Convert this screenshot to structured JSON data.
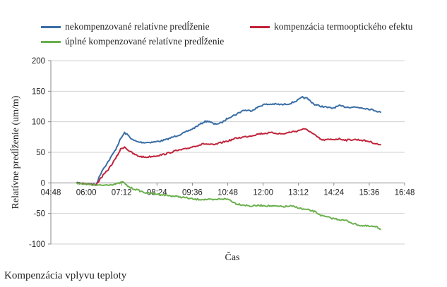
{
  "chart_data": {
    "type": "line",
    "xlabel": "Čas",
    "ylabel": "Relatívne predĺženie (um/m)",
    "ylim": [
      -100,
      200
    ],
    "yticks": [
      -100,
      -50,
      0,
      50,
      100,
      150,
      200
    ],
    "xlim": [
      "04:48",
      "16:48"
    ],
    "xticks": [
      "04:48",
      "06:00",
      "07:12",
      "08:24",
      "09:36",
      "10:48",
      "12:00",
      "13:12",
      "14:24",
      "15:36",
      "16:48"
    ],
    "grid": "horizontal",
    "legend_position": "top",
    "series": [
      {
        "name": "nekompenzované relatívne predĺženie",
        "color": "#3a6ea5",
        "x": [
          "05:40",
          "06:00",
          "06:10",
          "06:20",
          "06:32",
          "06:45",
          "07:00",
          "07:10",
          "07:18",
          "07:25",
          "07:35",
          "07:45",
          "08:00",
          "08:20",
          "08:40",
          "09:00",
          "09:20",
          "09:40",
          "10:00",
          "10:10",
          "10:20",
          "10:35",
          "10:50",
          "11:05",
          "11:20",
          "11:35",
          "11:50",
          "12:00",
          "12:20",
          "12:40",
          "12:55",
          "13:10",
          "13:20",
          "13:30",
          "13:45",
          "14:00",
          "14:20",
          "14:35",
          "14:50",
          "15:05",
          "15:20",
          "15:35",
          "15:50",
          "16:00"
        ],
        "values": [
          0,
          -1,
          -2,
          -3,
          20,
          35,
          55,
          72,
          82,
          78,
          70,
          67,
          66,
          67,
          70,
          76,
          82,
          90,
          100,
          101,
          96,
          98,
          107,
          112,
          119,
          118,
          124,
          128,
          129,
          128,
          130,
          135,
          140,
          138,
          128,
          125,
          122,
          126,
          124,
          124,
          123,
          121,
          118,
          115
        ]
      },
      {
        "name": "kompenzácia termooptického efektu",
        "color": "#c0243b",
        "x": [
          "05:40",
          "06:00",
          "06:10",
          "06:20",
          "06:32",
          "06:45",
          "07:00",
          "07:10",
          "07:18",
          "07:25",
          "07:35",
          "07:45",
          "08:00",
          "08:20",
          "08:40",
          "09:00",
          "09:20",
          "09:40",
          "10:00",
          "10:20",
          "10:35",
          "10:50",
          "11:05",
          "11:20",
          "11:35",
          "11:50",
          "12:00",
          "12:20",
          "12:40",
          "12:55",
          "13:10",
          "13:20",
          "13:30",
          "13:45",
          "14:00",
          "14:20",
          "14:35",
          "14:50",
          "15:05",
          "15:20",
          "15:35",
          "15:50",
          "16:00"
        ],
        "values": [
          0,
          -1,
          -3,
          -3,
          10,
          22,
          40,
          55,
          59,
          54,
          48,
          44,
          42,
          44,
          47,
          52,
          55,
          60,
          64,
          62,
          66,
          69,
          73,
          75,
          77,
          80,
          81,
          82,
          80,
          83,
          85,
          88,
          87,
          78,
          70,
          71,
          72,
          70,
          71,
          70,
          68,
          64,
          62
        ]
      },
      {
        "name": "úplné kompenzované relatívne predĺženie",
        "color": "#6ab04c",
        "x": [
          "05:40",
          "06:00",
          "06:10",
          "06:20",
          "06:32",
          "06:45",
          "07:00",
          "07:10",
          "07:15",
          "07:20",
          "07:30",
          "07:45",
          "08:00",
          "08:20",
          "08:40",
          "09:00",
          "09:20",
          "09:40",
          "10:00",
          "10:20",
          "10:35",
          "10:50",
          "11:05",
          "11:20",
          "11:35",
          "11:50",
          "12:00",
          "12:20",
          "12:40",
          "12:55",
          "13:10",
          "13:20",
          "13:30",
          "13:45",
          "14:00",
          "14:20",
          "14:35",
          "14:50",
          "15:05",
          "15:20",
          "15:35",
          "15:50",
          "16:00"
        ],
        "values": [
          0,
          -2,
          -3,
          -4,
          -4,
          -3,
          -2,
          0,
          2,
          -3,
          -8,
          -12,
          -16,
          -18,
          -20,
          -22,
          -24,
          -27,
          -27,
          -28,
          -26,
          -27,
          -34,
          -36,
          -38,
          -37,
          -37,
          -38,
          -39,
          -38,
          -40,
          -43,
          -44,
          -47,
          -54,
          -58,
          -60,
          -62,
          -67,
          -70,
          -71,
          -72,
          -76
        ]
      }
    ]
  },
  "caption": "Kompenzácia vplyvu teploty"
}
